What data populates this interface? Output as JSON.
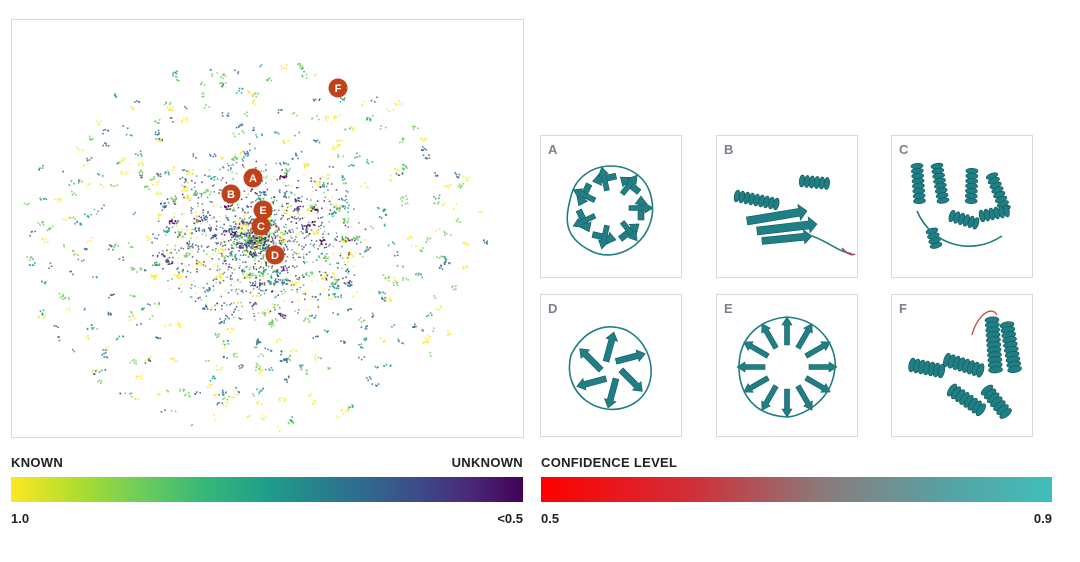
{
  "scatter": {
    "markers": [
      "A",
      "B",
      "C",
      "D",
      "E",
      "F"
    ],
    "marker_color": "#c0421b"
  },
  "tiles": [
    {
      "letter": "A",
      "shape": "beta-propeller-7-blade"
    },
    {
      "letter": "B",
      "shape": "alpha-beta-domain-with-tail"
    },
    {
      "letter": "C",
      "shape": "helical-bundle-pair"
    },
    {
      "letter": "D",
      "shape": "beta-barrel"
    },
    {
      "letter": "E",
      "shape": "beta-propeller-ring"
    },
    {
      "letter": "F",
      "shape": "helical-transmembrane-with-loop"
    }
  ],
  "legend_known": {
    "title_left": "KNOWN",
    "title_right": "UNKNOWN",
    "min_label": "1.0",
    "max_label": "<0.5",
    "colors": [
      "#fde725",
      "#6ece58",
      "#1f9e89",
      "#31688e",
      "#482878",
      "#440154"
    ]
  },
  "legend_confidence": {
    "title": "CONFIDENCE LEVEL",
    "min_label": "0.5",
    "max_label": "0.9",
    "colors": [
      "#ff0000",
      "#8c7a7a",
      "#3fbfba"
    ]
  },
  "structure_color": "#1f7f84"
}
